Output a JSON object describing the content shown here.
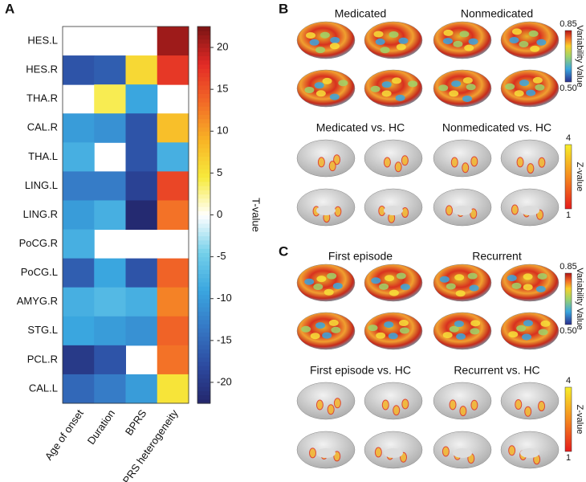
{
  "chart_data": {
    "type": "heatmap",
    "panel": "A",
    "rows": [
      "HES.L",
      "HES.R",
      "THA.R",
      "CAL.R",
      "THA.L",
      "LING.L",
      "LING.R",
      "PoCG.R",
      "PoCG.L",
      "AMYG.R",
      "STG.L",
      "PCL.R",
      "CAL.L"
    ],
    "columns": [
      "Age of onset",
      "Duration",
      "BPRS",
      "BPRS heterogeneity"
    ],
    "values": [
      [
        null,
        null,
        null,
        21
      ],
      [
        -17,
        -16,
        6,
        17
      ],
      [
        null,
        4,
        -9,
        null
      ],
      [
        -10,
        -11,
        -17,
        8
      ],
      [
        -8,
        null,
        -17,
        -8
      ],
      [
        -13,
        -13,
        -19,
        16
      ],
      [
        -10,
        -8,
        -22,
        13
      ],
      [
        -8,
        null,
        null,
        null
      ],
      [
        -16,
        -9,
        -17,
        14
      ],
      [
        -8,
        -7,
        -8,
        12
      ],
      [
        -9,
        -10,
        -11,
        14
      ],
      [
        -20,
        -17,
        null,
        13
      ],
      [
        -15,
        -13,
        -10,
        5
      ]
    ],
    "colorbar_label": "T-value",
    "clim": [
      -22.5,
      22.5
    ],
    "cticks": [
      -20,
      -15,
      -10,
      -5,
      0,
      5,
      10,
      15,
      20
    ],
    "colormap": [
      "#23266b",
      "#2c4aa0",
      "#3577c4",
      "#3aa6df",
      "#74d0ea",
      "#ffffff",
      "#f7ea3c",
      "#f8b325",
      "#f26a27",
      "#e32a26",
      "#7b1414"
    ]
  },
  "panels": [
    {
      "letter": "B",
      "conditions": [
        "Medicated",
        "Nonmedicated"
      ],
      "colorbar": {
        "label": "Variability Value",
        "max": "0.85",
        "min": "0.50"
      },
      "contrasts": [
        "Medicated vs. HC",
        "Nonmedicated vs. HC"
      ],
      "zbar": {
        "label": "Z-value",
        "max": "4",
        "min": "1"
      }
    },
    {
      "letter": "C",
      "conditions": [
        "First episode",
        "Recurrent"
      ],
      "colorbar": {
        "label": "Variability Value",
        "max": "0.85",
        "min": "0.50"
      },
      "contrasts": [
        "First episode vs. HC",
        "Recurrent vs. HC"
      ],
      "zbar": {
        "label": "Z-value",
        "max": "4",
        "min": "1"
      }
    }
  ]
}
